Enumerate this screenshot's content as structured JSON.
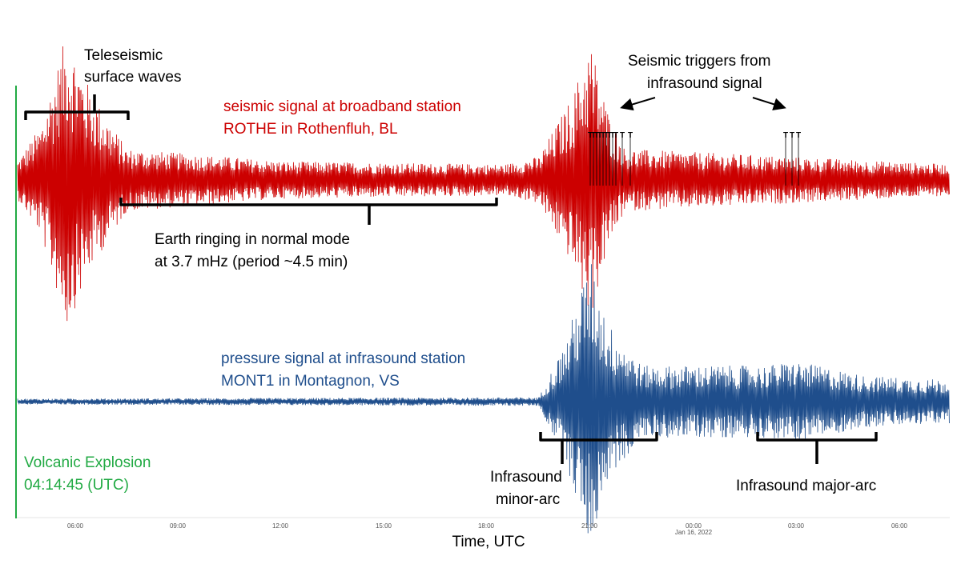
{
  "chart_data": {
    "type": "line",
    "x_axis": {
      "label": "Time, UTC",
      "ticks": [
        "06:00",
        "09:00",
        "12:00",
        "15:00",
        "18:00",
        "21:00",
        "00:00",
        "03:00",
        "06:00"
      ],
      "date_label": "Jan 16, 2022"
    },
    "event": {
      "name": "Volcanic Explosion",
      "time": "04:14:45 (UTC)",
      "color": "#22aa44"
    },
    "series": [
      {
        "name": "seismic signal at broadband station",
        "station": "ROTHE in Rothenfluh, BL",
        "color": "#cc0000",
        "envelope": [
          [
            "04:15",
            0.1
          ],
          [
            "05:00",
            0.35
          ],
          [
            "05:45",
            0.95
          ],
          [
            "06:30",
            0.55
          ],
          [
            "07:30",
            0.2
          ],
          [
            "12:00",
            0.12
          ],
          [
            "18:30",
            0.1
          ],
          [
            "19:30",
            0.15
          ],
          [
            "20:30",
            0.55
          ],
          [
            "21:00",
            0.9
          ],
          [
            "21:30",
            0.45
          ],
          [
            "22:00",
            0.2
          ],
          [
            "07:30",
            0.1
          ]
        ]
      },
      {
        "name": "pressure signal at infrasound station",
        "station": "MONT1 in Montagnon, VS",
        "color": "#1f4e8c",
        "envelope": [
          [
            "04:15",
            0.02
          ],
          [
            "19:30",
            0.03
          ],
          [
            "20:15",
            0.4
          ],
          [
            "21:00",
            1.0
          ],
          [
            "21:30",
            0.55
          ],
          [
            "22:30",
            0.25
          ],
          [
            "02:00",
            0.25
          ],
          [
            "03:00",
            0.28
          ],
          [
            "05:00",
            0.18
          ],
          [
            "07:30",
            0.15
          ]
        ]
      }
    ],
    "annotations": [
      "Teleseismic",
      "surface waves",
      "Earth ringing in normal mode",
      "at 3.7 mHz (period ~4.5 min)",
      "Seismic triggers from",
      "infrasound signal",
      "Infrasound",
      "minor-arc",
      "Infrasound major-arc"
    ],
    "trigger_marker": "T"
  }
}
